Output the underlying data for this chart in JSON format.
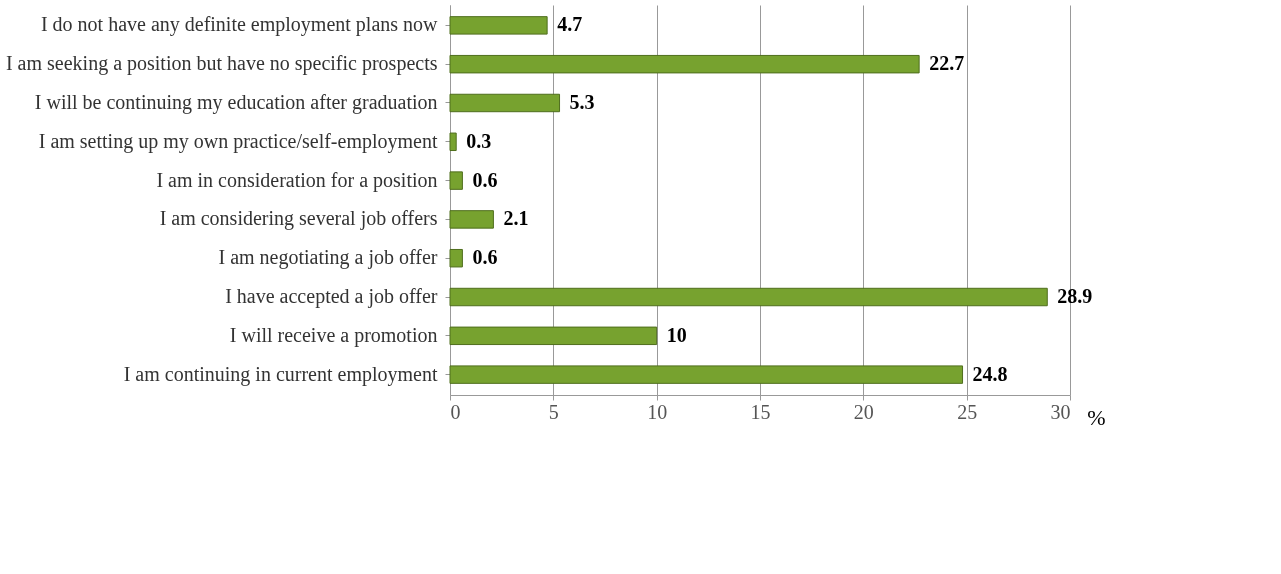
{
  "chart_data": {
    "type": "bar",
    "orientation": "horizontal",
    "xlabel": "%",
    "categories": [
      "I do not have any definite employment plans now",
      "I am seeking a position but have no specific prospects",
      "I will be continuing my education after graduation",
      "I am setting up my own practice/self-employment",
      "I am in consideration for a position",
      "I am considering several job offers",
      "I am negotiating a job offer",
      "I have accepted a job offer",
      "I will receive a promotion",
      "I am continuing in current employment"
    ],
    "values": [
      4.7,
      22.7,
      5.3,
      0.3,
      0.6,
      2.1,
      0.6,
      28.9,
      10,
      24.8
    ],
    "color": "#77a22f",
    "xlim": [
      0,
      30
    ],
    "xticks": [
      0,
      5,
      10,
      15,
      20,
      25,
      30
    ],
    "grid": "x",
    "data_labels": true
  }
}
